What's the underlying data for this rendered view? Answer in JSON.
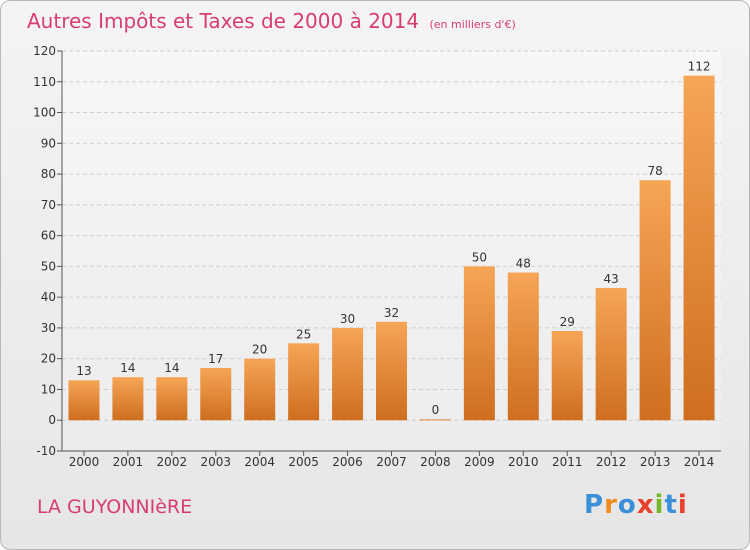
{
  "title": "Autres Impôts et Taxes de 2000 à 2014",
  "unit": "(en milliers d'€)",
  "city": "LA GUYONNIèRE",
  "logo": {
    "letters": [
      "P",
      "r",
      "o",
      "x",
      "i",
      "t",
      "i"
    ],
    "colors": [
      "#3a8fd8",
      "#f08c1e",
      "#3a8fd8",
      "#e8412c",
      "#76b72a",
      "#3a8fd8",
      "#e8412c"
    ]
  },
  "colors": {
    "title": "#d93d6e",
    "bar_top": "#f6a556",
    "bar_bottom": "#cf6e1f"
  },
  "chart_data": {
    "type": "bar",
    "categories": [
      "2000",
      "2001",
      "2002",
      "2003",
      "2004",
      "2005",
      "2006",
      "2007",
      "2008",
      "2009",
      "2010",
      "2011",
      "2012",
      "2013",
      "2014"
    ],
    "values": [
      13,
      14,
      14,
      17,
      20,
      25,
      30,
      32,
      0,
      50,
      48,
      29,
      43,
      78,
      112
    ],
    "data_labels": [
      "13",
      "14",
      "14",
      "17",
      "20",
      "25",
      "30",
      "32",
      "0",
      "50",
      "48",
      "29",
      "43",
      "78",
      "112"
    ],
    "title": "Autres Impôts et Taxes de 2000 à 2014",
    "xlabel": "",
    "ylabel": "",
    "ylim": [
      -10,
      120
    ],
    "yticks": [
      -10,
      0,
      10,
      20,
      30,
      40,
      50,
      60,
      70,
      80,
      90,
      100,
      110,
      120
    ],
    "grid": true,
    "legend": "none"
  }
}
